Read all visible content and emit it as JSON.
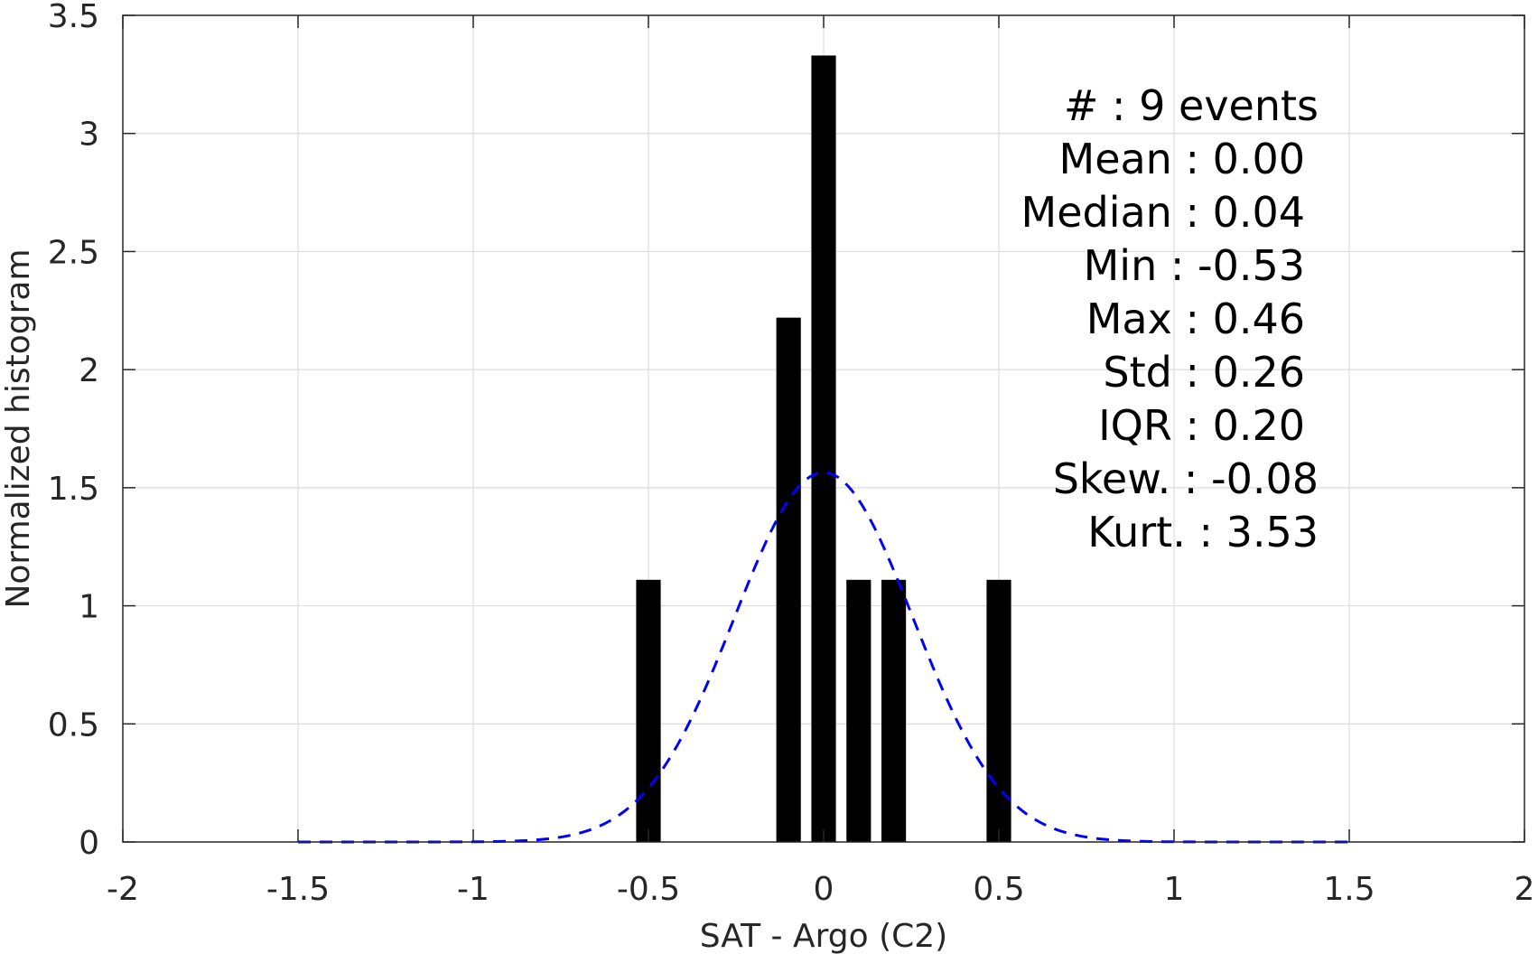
{
  "chart_data": {
    "type": "bar",
    "title": "",
    "xlabel": "SAT - Argo (C2)",
    "ylabel": "Normalized histogram",
    "xlim": [
      -2,
      2
    ],
    "ylim": [
      0,
      3.5
    ],
    "xticks": [
      "-2",
      "-1.5",
      "-1",
      "-0.5",
      "0",
      "0.5",
      "1",
      "1.5",
      "2"
    ],
    "xtick_values": [
      -2,
      -1.5,
      -1,
      -0.5,
      0,
      0.5,
      1,
      1.5,
      2
    ],
    "yticks": [
      "0",
      "0.5",
      "1",
      "1.5",
      "2",
      "2.5",
      "3",
      "3.5"
    ],
    "ytick_values": [
      0,
      0.5,
      1,
      1.5,
      2,
      2.5,
      3,
      3.5
    ],
    "grid": true,
    "bar_width": 0.07,
    "bars": [
      {
        "x": -0.5,
        "value": 1.11
      },
      {
        "x": -0.1,
        "value": 2.22
      },
      {
        "x": 0.0,
        "value": 3.33
      },
      {
        "x": 0.1,
        "value": 1.11
      },
      {
        "x": 0.2,
        "value": 1.11
      },
      {
        "x": 0.5,
        "value": 1.11
      }
    ],
    "bar_color": "#000000",
    "fit_curve": {
      "style": "dashed",
      "color": "#0000ff",
      "mean": 0.0,
      "std": 0.255,
      "x_range": [
        -1.5,
        1.5
      ]
    },
    "annotations": [
      "#  : 9 events",
      "Mean : 0.00",
      "Median : 0.04",
      "Min : -0.53",
      "Max : 0.46",
      "Std : 0.26",
      "IQR : 0.20",
      "Skew. : -0.08",
      "Kurt. : 3.53"
    ]
  }
}
